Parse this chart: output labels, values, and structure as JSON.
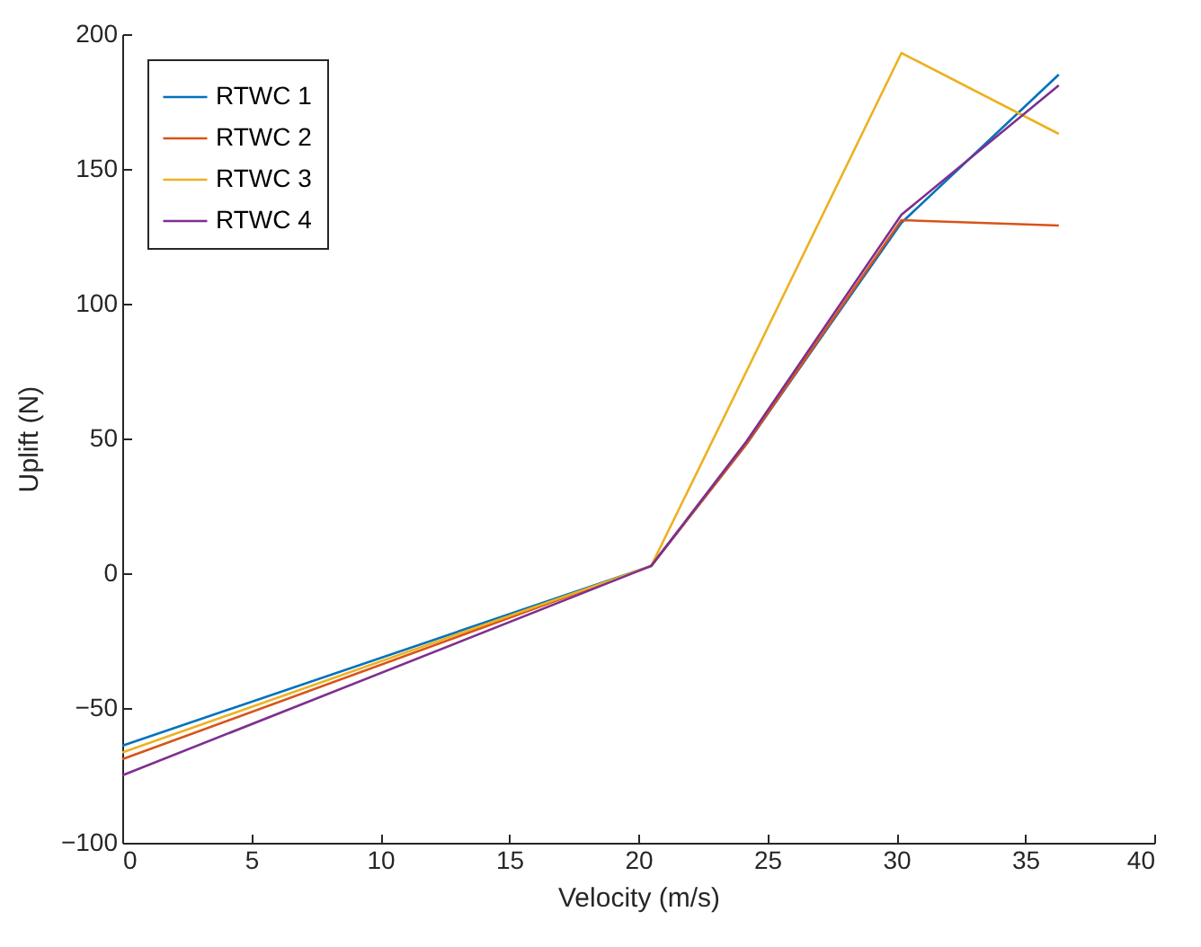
{
  "chart_data": {
    "type": "line",
    "xlabel": "Velocity (m/s)",
    "ylabel": "Uplift (N)",
    "x": [
      0,
      20.5,
      24.2,
      30.2,
      36.3
    ],
    "series": [
      {
        "name": "RTWC 1",
        "color": "#0072bd",
        "values": [
          -64,
          2.7,
          48,
          130,
          185
        ]
      },
      {
        "name": "RTWC 2",
        "color": "#d95319",
        "values": [
          -69,
          2.7,
          48,
          131,
          129
        ]
      },
      {
        "name": "RTWC 3",
        "color": "#edb120",
        "values": [
          -66.5,
          2.7,
          75,
          193,
          163
        ]
      },
      {
        "name": "RTWC 4",
        "color": "#7e2f8e",
        "values": [
          -75,
          2.7,
          49,
          133,
          181
        ]
      }
    ],
    "xlim": [
      0,
      40
    ],
    "xticks": [
      0,
      5,
      10,
      15,
      20,
      25,
      30,
      35,
      40
    ],
    "ylim": [
      -100,
      200
    ],
    "yticks": [
      -100,
      -50,
      0,
      50,
      100,
      150,
      200
    ],
    "grid": false,
    "legend": "top left"
  }
}
